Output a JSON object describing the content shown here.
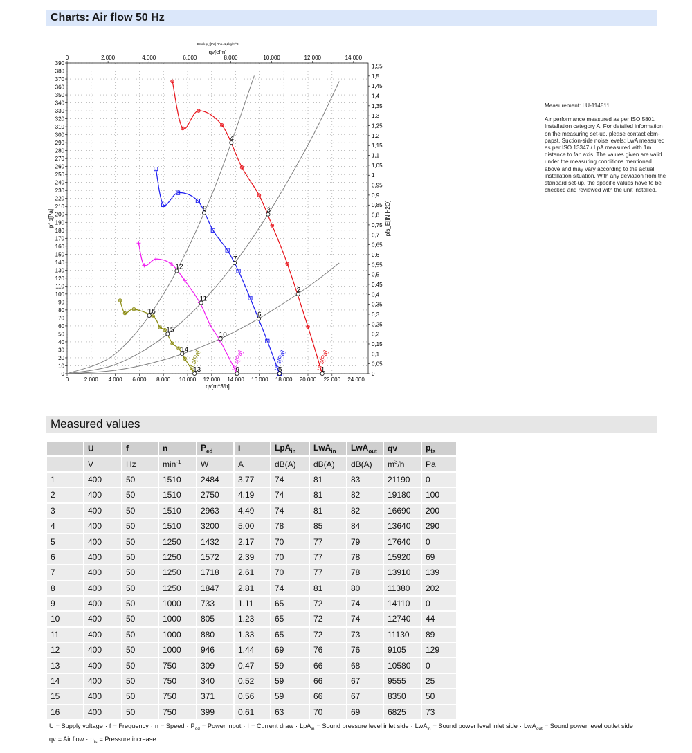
{
  "header": {
    "title": "Charts: Air flow 50 Hz"
  },
  "chart_data": {
    "type": "line",
    "title": "Druck p_f[Pa] Rho=1,2kg/m^3",
    "xlabel": "qv[m^3/h]",
    "x2label": "qv[cfm]",
    "ylabel": "pf s[Pa]",
    "y2label": "pfs_E[IN H2O]",
    "xlim": [
      0,
      25000
    ],
    "xticks": [
      0,
      {
        "value": 2000,
        "label": "2.000"
      },
      {
        "value": 4000,
        "label": "4.000"
      },
      {
        "value": 6000,
        "label": "6.000"
      },
      {
        "value": 8000,
        "label": "8.000"
      },
      {
        "value": 10000,
        "label": "10.000"
      },
      {
        "value": 12000,
        "label": "12.000"
      },
      {
        "value": 14000,
        "label": "14.000"
      },
      {
        "value": 16000,
        "label": "16.000"
      },
      {
        "value": 18000,
        "label": "18.000"
      },
      {
        "value": 20000,
        "label": "20.000"
      },
      {
        "value": 22000,
        "label": "22.000"
      },
      {
        "value": 24000,
        "label": "24.000"
      }
    ],
    "x2lim": [
      0,
      14715
    ],
    "x2ticks": [
      0,
      {
        "value": 2000,
        "label": "2.000"
      },
      {
        "value": 4000,
        "label": "4.000"
      },
      {
        "value": 6000,
        "label": "6.000"
      },
      {
        "value": 8000,
        "label": "8.000"
      },
      {
        "value": 10000,
        "label": "10.000"
      },
      {
        "value": 12000,
        "label": "12.000"
      },
      {
        "value": 14000,
        "label": "14.000"
      }
    ],
    "ylim": [
      0,
      390
    ],
    "yticks": [
      0,
      10,
      20,
      30,
      40,
      50,
      60,
      70,
      80,
      90,
      100,
      110,
      120,
      130,
      140,
      150,
      160,
      170,
      180,
      190,
      200,
      210,
      220,
      230,
      240,
      250,
      260,
      270,
      280,
      290,
      300,
      310,
      320,
      330,
      340,
      350,
      360,
      370,
      380,
      390
    ],
    "y2lim": [
      0,
      1.5657
    ],
    "y2ticks": [
      0,
      {
        "value": 0.05,
        "label": "0,05"
      },
      {
        "value": 0.1,
        "label": "0,1"
      },
      {
        "value": 0.15,
        "label": "0,15"
      },
      {
        "value": 0.2,
        "label": "0,2"
      },
      {
        "value": 0.25,
        "label": "0,25"
      },
      {
        "value": 0.3,
        "label": "0,3"
      },
      {
        "value": 0.35,
        "label": "0,35"
      },
      {
        "value": 0.4,
        "label": "0,4"
      },
      {
        "value": 0.45,
        "label": "0,45"
      },
      {
        "value": 0.5,
        "label": "0,5"
      },
      {
        "value": 0.55,
        "label": "0,55"
      },
      {
        "value": 0.6,
        "label": "0,6"
      },
      {
        "value": 0.65,
        "label": "0,65"
      },
      {
        "value": 0.7,
        "label": "0,7"
      },
      {
        "value": 0.75,
        "label": "0,75"
      },
      {
        "value": 0.8,
        "label": "0,8"
      },
      {
        "value": 0.85,
        "label": "0,85"
      },
      {
        "value": 0.9,
        "label": "0,9"
      },
      {
        "value": 0.95,
        "label": "0,95"
      },
      {
        "value": 1,
        "label": "1"
      },
      {
        "value": 1.05,
        "label": "1,05"
      },
      {
        "value": 1.1,
        "label": "1,1"
      },
      {
        "value": 1.15,
        "label": "1,15"
      },
      {
        "value": 1.2,
        "label": "1,2"
      },
      {
        "value": 1.25,
        "label": "1,25"
      },
      {
        "value": 1.3,
        "label": "1,3"
      },
      {
        "value": 1.35,
        "label": "1,35"
      },
      {
        "value": 1.4,
        "label": "1,4"
      },
      {
        "value": 1.45,
        "label": "1,45"
      },
      {
        "value": 1.5,
        "label": "1,5"
      },
      {
        "value": 1.55,
        "label": "1,55"
      }
    ],
    "grid": true,
    "series": [
      {
        "name": "pf s[Pa]",
        "color": "#e8141b",
        "marker": "circle",
        "x": [
          8743,
          9600,
          10914,
          12857,
          14514,
          15943,
          17029,
          18286,
          20000,
          21190
        ],
        "values": [
          367,
          308,
          330,
          312,
          259,
          224,
          186,
          138,
          59,
          0
        ]
      },
      {
        "name": "pf s[Pa]",
        "color": "#1c1cf0",
        "marker": "square",
        "x": [
          7371,
          8000,
          9200,
          10857,
          12114,
          13314,
          14229,
          15200,
          16629,
          17640
        ],
        "values": [
          257,
          212,
          227,
          217,
          180,
          155,
          129,
          95,
          41,
          0
        ]
      },
      {
        "name": "pf s[Pa]",
        "color": "#f01cf0",
        "marker": "plus",
        "x": [
          5943,
          6400,
          7371,
          8629,
          9771,
          11029,
          11886,
          12686,
          14110
        ],
        "values": [
          164,
          136,
          144,
          138,
          117,
          89,
          61,
          42,
          0
        ]
      },
      {
        "name": "pf s[Pa]",
        "color": "#8a8a10",
        "marker": "circle",
        "x": [
          4400,
          4800,
          5543,
          7143,
          7714,
          8114,
          8743,
          9257,
          9771,
          10580
        ],
        "values": [
          92,
          76,
          81,
          72,
          58,
          55,
          38,
          32,
          19,
          0
        ]
      }
    ],
    "system_curves": {
      "color": "#808080",
      "curves": [
        {
          "x": [
            0,
            4000,
            8000,
            12000,
            15543
          ],
          "values": [
            0,
            25,
            100,
            224,
            374
          ]
        },
        {
          "x": [
            0,
            4000,
            8000,
            12000,
            16000,
            20000,
            22600
          ],
          "values": [
            0,
            11.5,
            46,
            103,
            184,
            287,
            367
          ]
        },
        {
          "x": [
            0,
            4000,
            8000,
            12000,
            16000,
            20000,
            22600
          ],
          "values": [
            0,
            4.3,
            17.4,
            39,
            70,
            109,
            139
          ]
        }
      ]
    },
    "operating_points": {
      "labels": [
        "1",
        "2",
        "3",
        "4",
        "5",
        "6",
        "7",
        "8",
        "9",
        "10",
        "11",
        "12",
        "13",
        "14",
        "15",
        "16"
      ],
      "x": [
        21190,
        19180,
        16690,
        13640,
        17640,
        15920,
        13910,
        11380,
        14110,
        12740,
        11130,
        9105,
        10580,
        9555,
        8350,
        6825
      ],
      "values": [
        0,
        100,
        200,
        290,
        0,
        69,
        139,
        202,
        0,
        44,
        89,
        129,
        0,
        25,
        50,
        73
      ]
    }
  },
  "note": {
    "title": "Measurement: LU-114811",
    "text": "Air performance measured as per ISO 5801 Installation category A. For detailed information on the measuring set-up, please contact ebm-papst. Suction-side noise levels: LwA measured as per ISO 13347 / LpA measured with 1m distance to fan axis. The values given are valid under the measuring conditions mentioned above and may vary according to the actual installation situation. With any deviation from the standard set-up, the specific values have to be checked and reviewed with the unit installed."
  },
  "section": {
    "title": "Measured values"
  },
  "table": {
    "header": [
      {
        "text": "U"
      },
      {
        "text": "f"
      },
      {
        "text": "n"
      },
      {
        "text": "P",
        "sub": "ed"
      },
      {
        "text": "I"
      },
      {
        "text": "LpA",
        "sub": "in"
      },
      {
        "text": "LwA",
        "sub": "in"
      },
      {
        "text": "LwA",
        "sub": "out"
      },
      {
        "text": "qv"
      },
      {
        "text": "p",
        "sub": "fs"
      }
    ],
    "units": [
      {
        "text": "V"
      },
      {
        "text": "Hz"
      },
      {
        "text": "min",
        "sup": "-1"
      },
      {
        "text": "W"
      },
      {
        "text": "A"
      },
      {
        "text": "dB(A)"
      },
      {
        "text": "dB(A)"
      },
      {
        "text": "dB(A)"
      },
      {
        "text": "m",
        "sup": "3",
        "after": "/h"
      },
      {
        "text": "Pa"
      }
    ],
    "rows": [
      [
        1,
        400,
        50,
        1510,
        2484,
        3.77,
        74,
        81,
        83,
        21190,
        0
      ],
      [
        2,
        400,
        50,
        1510,
        2750,
        4.19,
        74,
        81,
        82,
        19180,
        100
      ],
      [
        3,
        400,
        50,
        1510,
        2963,
        4.49,
        74,
        81,
        82,
        16690,
        200
      ],
      [
        4,
        400,
        50,
        1510,
        3200,
        "5.00",
        78,
        85,
        84,
        13640,
        290
      ],
      [
        5,
        400,
        50,
        1250,
        1432,
        2.17,
        70,
        77,
        79,
        17640,
        0
      ],
      [
        6,
        400,
        50,
        1250,
        1572,
        2.39,
        70,
        77,
        78,
        15920,
        69
      ],
      [
        7,
        400,
        50,
        1250,
        1718,
        2.61,
        70,
        77,
        78,
        13910,
        139
      ],
      [
        8,
        400,
        50,
        1250,
        1847,
        2.81,
        74,
        81,
        80,
        11380,
        202
      ],
      [
        9,
        400,
        50,
        1000,
        733,
        1.11,
        65,
        72,
        74,
        14110,
        0
      ],
      [
        10,
        400,
        50,
        1000,
        805,
        1.23,
        65,
        72,
        74,
        12740,
        44
      ],
      [
        11,
        400,
        50,
        1000,
        880,
        1.33,
        65,
        72,
        73,
        11130,
        89
      ],
      [
        12,
        400,
        50,
        1000,
        946,
        1.44,
        69,
        76,
        76,
        9105,
        129
      ],
      [
        13,
        400,
        50,
        750,
        309,
        0.47,
        59,
        66,
        68,
        10580,
        0
      ],
      [
        14,
        400,
        50,
        750,
        340,
        0.52,
        59,
        66,
        67,
        9555,
        25
      ],
      [
        15,
        400,
        50,
        750,
        371,
        0.56,
        59,
        66,
        67,
        8350,
        50
      ],
      [
        16,
        400,
        50,
        750,
        399,
        0.61,
        63,
        70,
        69,
        6825,
        73
      ]
    ]
  },
  "footnote": {
    "separator": "·",
    "lines": [
      [
        {
          "sym": "U",
          "text": "= Supply voltage"
        },
        {
          "sym": "f",
          "text": "= Frequency"
        },
        {
          "sym": "n",
          "text": "= Speed"
        },
        {
          "sym": "P",
          "sub": "ed",
          "text": "= Power input"
        },
        {
          "sym": "I",
          "text": "= Current draw"
        },
        {
          "sym": "LpA",
          "sub": "in",
          "text": "= Sound pressure level inlet side"
        },
        {
          "sym": "LwA",
          "sub": "in",
          "text": "= Sound power level inlet side"
        },
        {
          "sym": "LwA",
          "sub": "out",
          "text": "= Sound power level outlet side"
        }
      ],
      [
        {
          "sym": "qv",
          "text": "= Air flow"
        },
        {
          "sym": "p",
          "sub": "fs",
          "text": "= Pressure increase"
        }
      ]
    ]
  }
}
